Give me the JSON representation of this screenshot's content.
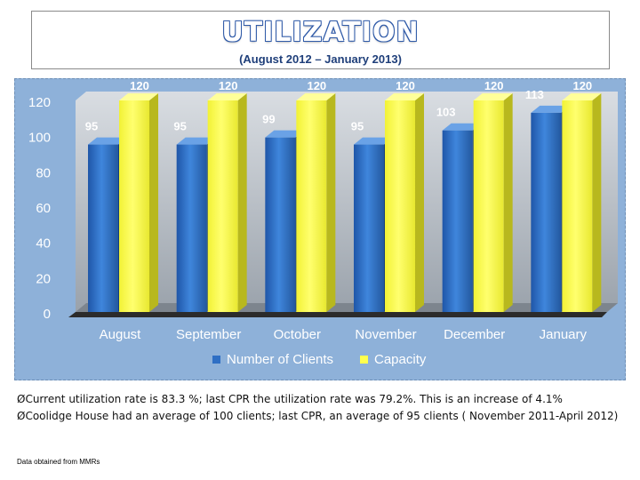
{
  "title": {
    "main": "UTILIZATION",
    "subtitle": "(August 2012 – January 2013)"
  },
  "colors": {
    "panel_bg": "#8eb1d9",
    "clients_bar": "#2f6fc4",
    "capacity_bar": "#ffff4d",
    "title_outline": "#2f5aa8"
  },
  "chart_data": {
    "type": "bar",
    "title": "UTILIZATION",
    "subtitle": "(August 2012 – January 2013)",
    "categories": [
      "August",
      "September",
      "October",
      "November",
      "December",
      "January"
    ],
    "series": [
      {
        "name": "Number of Clients",
        "values": [
          95,
          95,
          99,
          95,
          103,
          113
        ]
      },
      {
        "name": "Capacity",
        "values": [
          120,
          120,
          120,
          120,
          120,
          120
        ]
      }
    ],
    "yticks": [
      "0",
      "20",
      "40",
      "60",
      "80",
      "100",
      "120"
    ],
    "ylim": [
      0,
      120
    ],
    "xlabel": "",
    "ylabel": "",
    "legend_position": "bottom",
    "style": "3d-columns"
  },
  "notes": [
    "ØCurrent utilization rate is 83.3 %; last CPR the utilization rate was 79.2%. This is an increase of 4.1%",
    "ØCoolidge House had an average of 100 clients; last CPR, an average of 95 clients ( November 2011-April 2012)"
  ],
  "source_note": "Data obtained from MMRs"
}
